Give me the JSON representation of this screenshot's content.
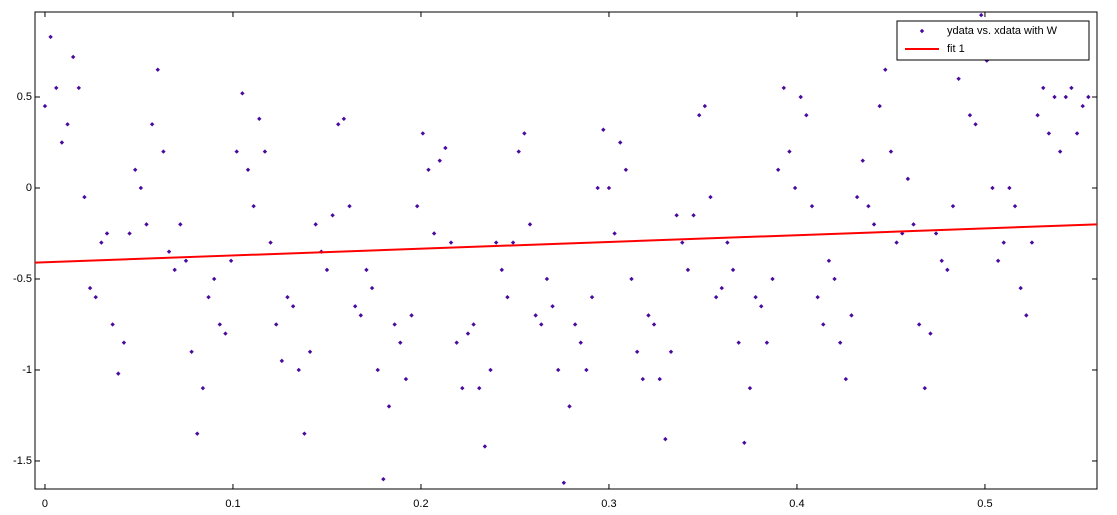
{
  "chart_data": {
    "type": "scatter",
    "xlim": [
      -0.0053,
      0.5596
    ],
    "ylim": [
      -1.654,
      0.967
    ],
    "xticks": [
      0,
      0.1,
      0.2,
      0.3,
      0.4,
      0.5
    ],
    "yticks": [
      -1.5,
      -1,
      -0.5,
      0,
      0.5
    ],
    "legend": "northeast",
    "series": [
      {
        "name": "ydata vs. xdata with W",
        "color": "#4a0a9e",
        "marker": "diamond",
        "x": [
          0.0,
          0.003,
          0.006,
          0.009,
          0.012,
          0.015,
          0.018,
          0.021,
          0.024,
          0.027,
          0.03,
          0.033,
          0.036,
          0.039,
          0.042,
          0.045,
          0.048,
          0.051,
          0.054,
          0.057,
          0.06,
          0.063,
          0.066,
          0.069,
          0.072,
          0.075,
          0.078,
          0.081,
          0.084,
          0.087,
          0.09,
          0.093,
          0.096,
          0.099,
          0.102,
          0.105,
          0.108,
          0.111,
          0.114,
          0.117,
          0.12,
          0.123,
          0.126,
          0.129,
          0.132,
          0.135,
          0.138,
          0.141,
          0.144,
          0.147,
          0.15,
          0.153,
          0.156,
          0.159,
          0.162,
          0.165,
          0.168,
          0.171,
          0.174,
          0.177,
          0.18,
          0.183,
          0.186,
          0.189,
          0.192,
          0.195,
          0.198,
          0.201,
          0.204,
          0.207,
          0.21,
          0.213,
          0.216,
          0.219,
          0.222,
          0.225,
          0.228,
          0.231,
          0.234,
          0.237,
          0.24,
          0.243,
          0.246,
          0.249,
          0.252,
          0.255,
          0.258,
          0.261,
          0.264,
          0.267,
          0.27,
          0.273,
          0.276,
          0.279,
          0.282,
          0.285,
          0.288,
          0.291,
          0.294,
          0.297,
          0.3,
          0.303,
          0.306,
          0.309,
          0.312,
          0.315,
          0.318,
          0.321,
          0.324,
          0.327,
          0.33,
          0.333,
          0.336,
          0.339,
          0.342,
          0.345,
          0.348,
          0.351,
          0.354,
          0.357,
          0.36,
          0.363,
          0.366,
          0.369,
          0.372,
          0.375,
          0.378,
          0.381,
          0.384,
          0.387,
          0.39,
          0.393,
          0.396,
          0.399,
          0.402,
          0.405,
          0.408,
          0.411,
          0.414,
          0.417,
          0.42,
          0.423,
          0.426,
          0.429,
          0.432,
          0.435,
          0.438,
          0.441,
          0.444,
          0.447,
          0.45,
          0.453,
          0.456,
          0.459,
          0.462,
          0.465,
          0.468,
          0.471,
          0.474,
          0.477,
          0.48,
          0.483,
          0.486,
          0.489,
          0.492,
          0.495,
          0.498,
          0.501,
          0.504,
          0.507,
          0.51,
          0.513,
          0.516,
          0.519,
          0.522,
          0.525,
          0.528,
          0.531,
          0.534,
          0.537,
          0.54,
          0.543,
          0.546,
          0.549,
          0.552,
          0.555
        ],
        "values": [
          0.45,
          0.83,
          0.55,
          0.25,
          0.35,
          0.72,
          0.55,
          -0.05,
          -0.55,
          -0.6,
          -0.3,
          -0.25,
          -0.75,
          -1.02,
          -0.85,
          -0.25,
          0.1,
          0.0,
          -0.2,
          0.35,
          0.65,
          0.2,
          -0.35,
          -0.45,
          -0.2,
          -0.4,
          -0.9,
          -1.35,
          -1.1,
          -0.6,
          -0.5,
          -0.75,
          -0.8,
          -0.4,
          0.2,
          0.52,
          0.1,
          -0.1,
          0.38,
          0.2,
          -0.3,
          -0.75,
          -0.95,
          -0.6,
          -0.65,
          -1.0,
          -1.35,
          -0.9,
          -0.2,
          -0.35,
          -0.45,
          -0.15,
          0.35,
          0.38,
          -0.1,
          -0.65,
          -0.7,
          -0.45,
          -0.55,
          -1.0,
          -1.6,
          -1.2,
          -0.75,
          -0.85,
          -1.05,
          -0.7,
          -0.1,
          0.3,
          0.1,
          -0.25,
          0.15,
          0.22,
          -0.3,
          -0.85,
          -1.1,
          -0.8,
          -0.75,
          -1.1,
          -1.42,
          -1.0,
          -0.3,
          -0.45,
          -0.6,
          -0.3,
          0.2,
          0.3,
          -0.2,
          -0.7,
          -0.75,
          -0.5,
          -0.65,
          -1.0,
          -1.62,
          -1.2,
          -0.75,
          -0.85,
          -1.0,
          -0.6,
          0.0,
          0.32,
          0.0,
          -0.25,
          0.25,
          0.1,
          -0.5,
          -0.9,
          -1.05,
          -0.7,
          -0.75,
          -1.05,
          -1.38,
          -0.9,
          -0.15,
          -0.3,
          -0.45,
          -0.15,
          0.4,
          0.45,
          -0.05,
          -0.6,
          -0.55,
          -0.3,
          -0.45,
          -0.85,
          -1.4,
          -1.1,
          -0.6,
          -0.65,
          -0.85,
          -0.5,
          0.1,
          0.55,
          0.2,
          0.0,
          0.5,
          0.4,
          -0.1,
          -0.6,
          -0.75,
          -0.4,
          -0.5,
          -0.85,
          -1.05,
          -0.7,
          -0.05,
          0.15,
          -0.1,
          -0.2,
          0.45,
          0.65,
          0.2,
          -0.3,
          -0.25,
          0.05,
          -0.2,
          -0.75,
          -1.1,
          -0.8,
          -0.25,
          -0.4,
          -0.45,
          -0.1,
          0.6,
          0.9,
          0.4,
          0.35,
          0.95,
          0.7,
          0.0,
          -0.4,
          -0.3,
          0.0,
          -0.1,
          -0.55,
          -0.7,
          -0.3,
          0.4,
          0.55,
          0.3,
          0.5,
          0.2,
          0.5,
          0.55,
          0.3,
          0.45,
          0.5
        ]
      },
      {
        "name": "fit 1",
        "color": "#ff0000",
        "marker": "line",
        "x": [
          -0.0053,
          0.5596
        ],
        "values": [
          -0.41,
          -0.2
        ]
      }
    ]
  }
}
